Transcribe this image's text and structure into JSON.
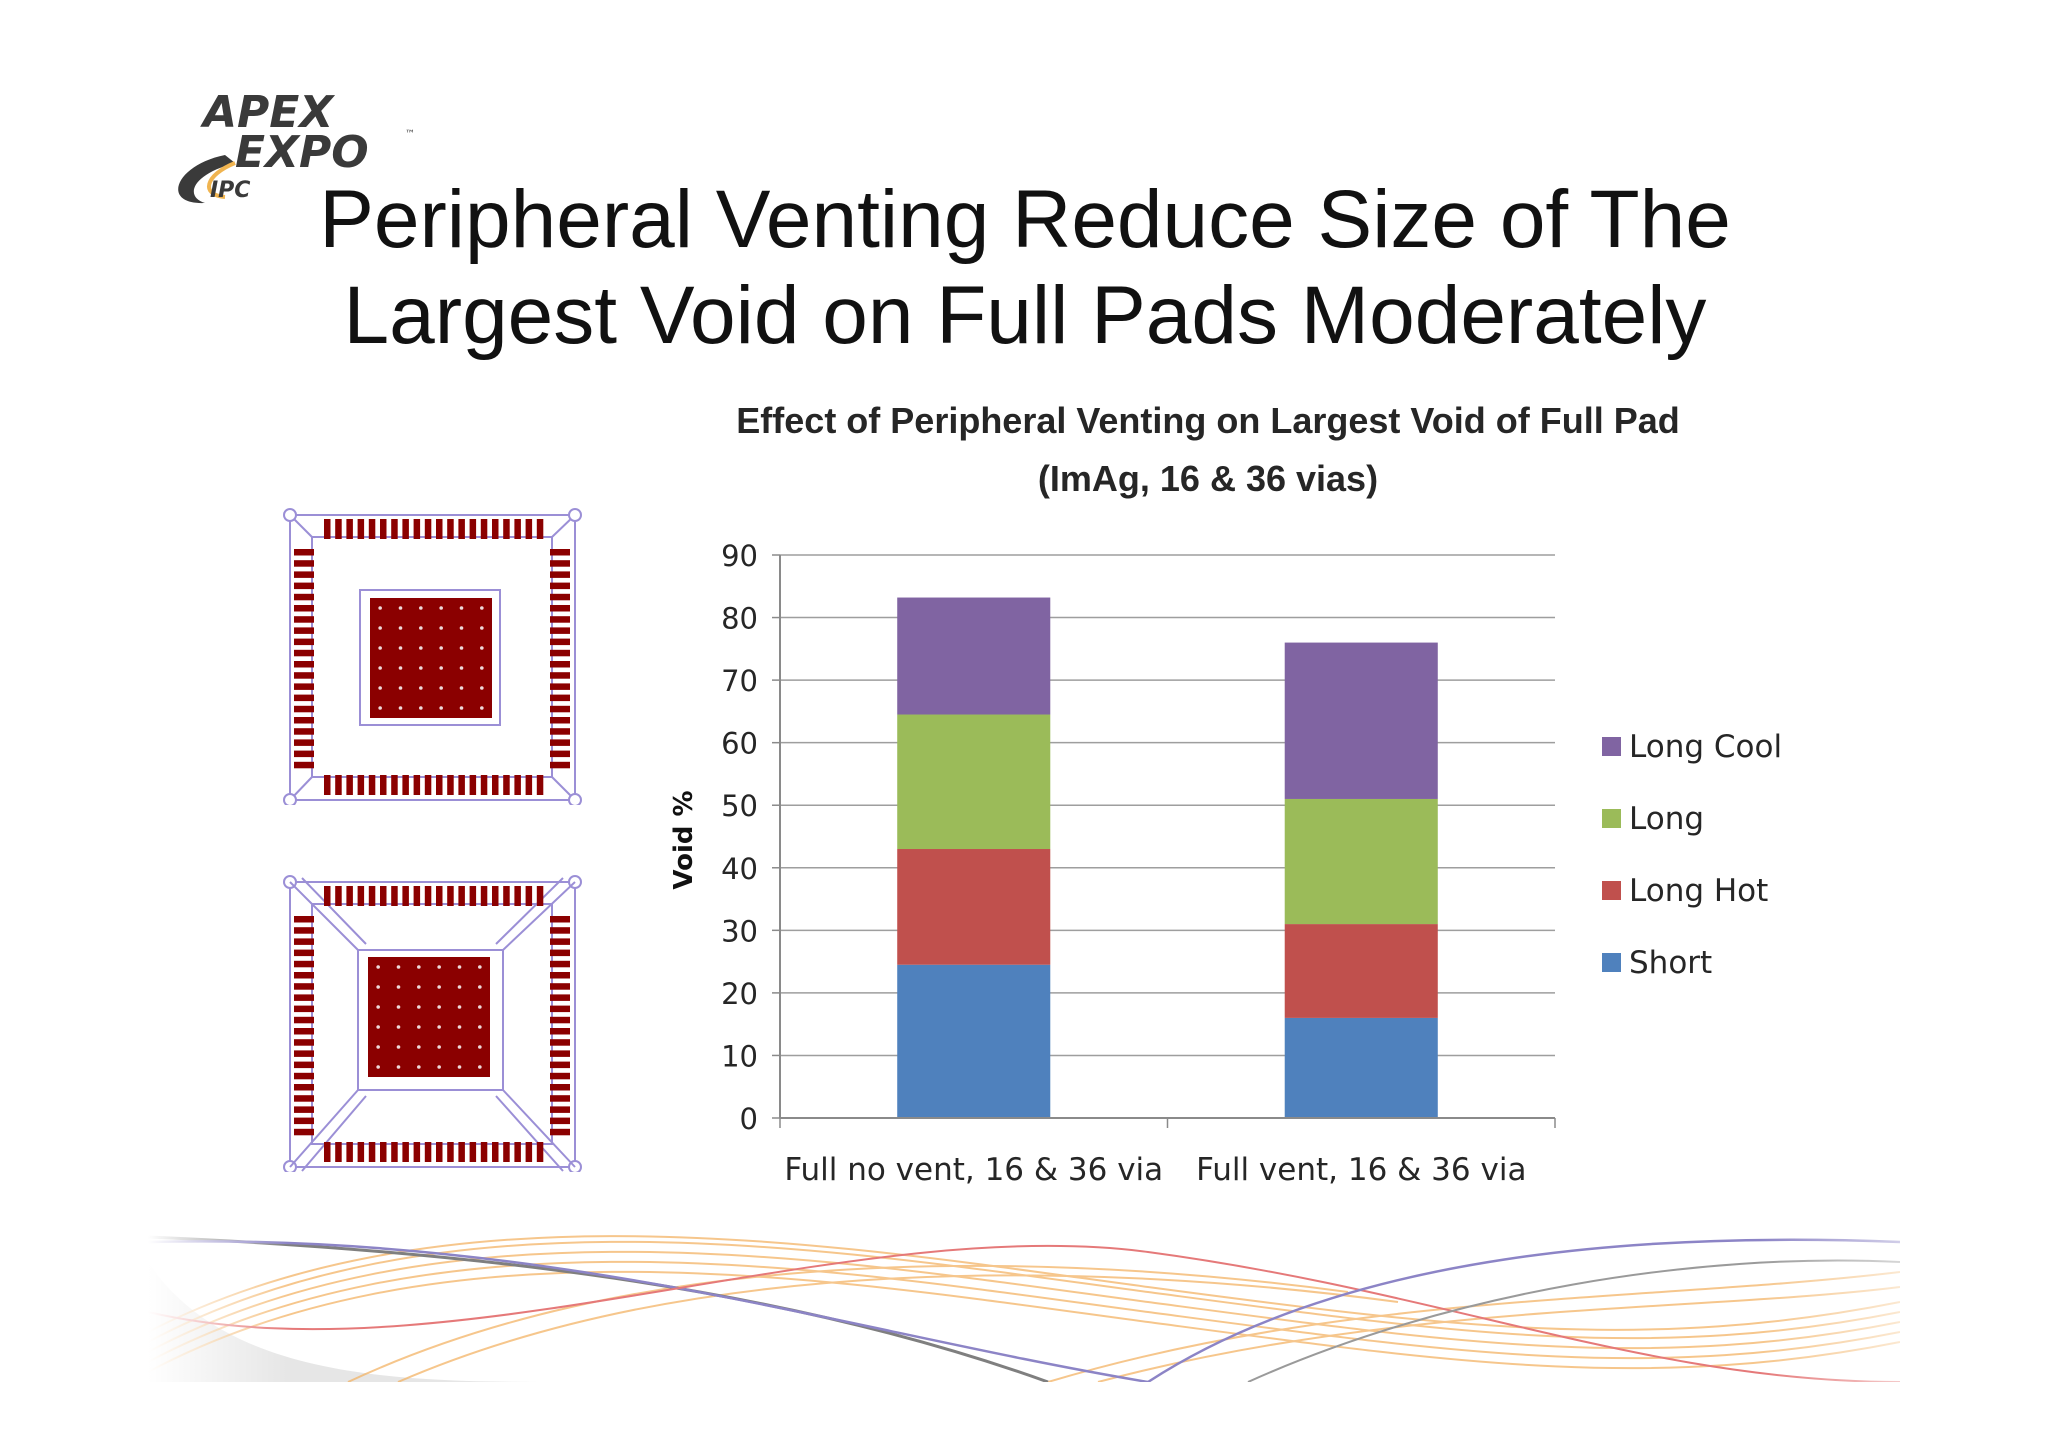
{
  "logo": {
    "line1": "APEX",
    "line2": "EXPO",
    "org": "IPC",
    "tm": "™"
  },
  "slide_title": {
    "line1": "Peripheral Venting Reduce Size of The",
    "line2": "Largest Void on Full Pads Moderately"
  },
  "colors": {
    "short": "#4f81bd",
    "long_hot": "#c0504d",
    "long": "#9bbb59",
    "long_cool": "#8064a2",
    "pad": "#8b0000",
    "outline": "#9b8fd6"
  },
  "icons": [
    "footprint-no-vent-diagram",
    "footprint-vent-diagram",
    "decorative-wave-graphic"
  ],
  "chart_data": {
    "type": "bar",
    "stacked": true,
    "title": "Effect of Peripheral Venting on Largest Void of Full Pad",
    "subtitle": "(ImAg, 16 & 36 vias)",
    "xlabel": "",
    "ylabel": "Void %",
    "ylim": [
      0,
      90
    ],
    "yticks": [
      0,
      10,
      20,
      30,
      40,
      50,
      60,
      70,
      80,
      90
    ],
    "grid": true,
    "legend_position": "right",
    "categories": [
      "Full no vent, 16 & 36 via",
      "Full vent, 16 & 36 via"
    ],
    "series": [
      {
        "name": "Short",
        "color": "#4f81bd",
        "values": [
          24.5,
          16
        ]
      },
      {
        "name": "Long Hot",
        "color": "#c0504d",
        "values": [
          18.5,
          15
        ]
      },
      {
        "name": "Long",
        "color": "#9bbb59",
        "values": [
          21.5,
          20
        ]
      },
      {
        "name": "Long Cool",
        "color": "#8064a2",
        "values": [
          18.7,
          25
        ]
      }
    ],
    "legend_order": [
      "Long Cool",
      "Long",
      "Long Hot",
      "Short"
    ]
  }
}
